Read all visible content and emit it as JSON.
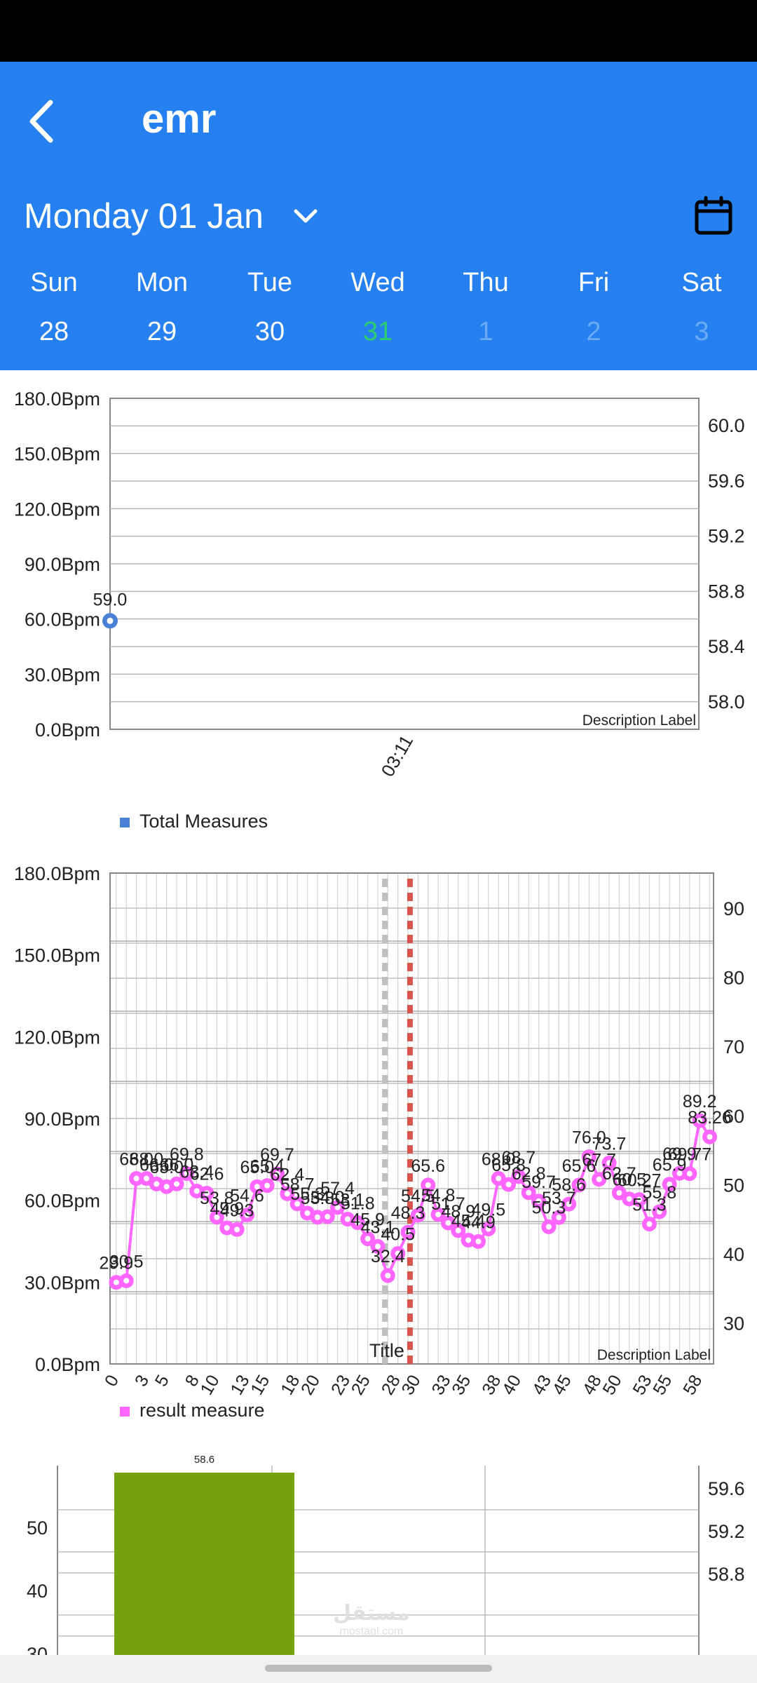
{
  "app": {
    "title": "emr"
  },
  "date_selector": {
    "label": "Monday 01 Jan"
  },
  "week": [
    {
      "name": "Sun",
      "num": "28",
      "state": "normal"
    },
    {
      "name": "Mon",
      "num": "29",
      "state": "normal"
    },
    {
      "name": "Tue",
      "num": "30",
      "state": "normal"
    },
    {
      "name": "Wed",
      "num": "31",
      "state": "today"
    },
    {
      "name": "Thu",
      "num": "1",
      "state": "muted"
    },
    {
      "name": "Fri",
      "num": "2",
      "state": "muted"
    },
    {
      "name": "Sat",
      "num": "3",
      "state": "muted"
    }
  ],
  "icons": {
    "back": "back-icon",
    "chevron": "chevron-down-icon",
    "calendar": "calendar-icon"
  },
  "colors": {
    "appbar": "#2680f0",
    "today": "#2ecc71",
    "series1": "#4a80d6",
    "series2": "#ff66ff",
    "bar": "#77a10a",
    "limit1": "#c0c0c0",
    "limit2": "#d9534f"
  },
  "watermark": {
    "main": "مستقل",
    "sub": "mostaql.com"
  },
  "chart_data": [
    {
      "type": "line",
      "ylabels_left": [
        "180.0Bpm",
        "150.0Bpm",
        "120.0Bpm",
        "90.0Bpm",
        "60.0Bpm",
        "30.0Bpm",
        "0.0Bpm"
      ],
      "ylabels_right": [
        "60.0",
        "59.6",
        "59.2",
        "58.8",
        "58.4",
        "58.0"
      ],
      "ylim": [
        0,
        180
      ],
      "categories": [
        "03:11"
      ],
      "series": [
        {
          "name": "Total Measures",
          "values": [
            59.0
          ],
          "labels": [
            "59.0"
          ]
        }
      ],
      "description": "Description Label",
      "legend": "bottom-left"
    },
    {
      "type": "line",
      "ylabels_left": [
        "180.0Bpm",
        "150.0Bpm",
        "120.0Bpm",
        "90.0Bpm",
        "60.0Bpm",
        "30.0Bpm",
        "0.0Bpm"
      ],
      "ylabels_right": [
        "90",
        "80",
        "70",
        "60",
        "50",
        "40",
        "30"
      ],
      "ylim": [
        0,
        180
      ],
      "xtick_labels": [
        "0",
        "3",
        "5",
        "8",
        "10",
        "13",
        "15",
        "18",
        "20",
        "23",
        "25",
        "28",
        "30",
        "33",
        "35",
        "38",
        "40",
        "43",
        "45",
        "48",
        "50",
        "53",
        "55",
        "58"
      ],
      "x": [
        0,
        1,
        2,
        3,
        4,
        5,
        6,
        7,
        8,
        9,
        10,
        11,
        12,
        13,
        14,
        15,
        16,
        17,
        18,
        19,
        20,
        21,
        22,
        23,
        24,
        25,
        26,
        27,
        28,
        29,
        30,
        31,
        32,
        33,
        34,
        35,
        36,
        37,
        38,
        39,
        40,
        41,
        42,
        43,
        44,
        45,
        46,
        47,
        48,
        49,
        50,
        51,
        52,
        53,
        54,
        55,
        56,
        57,
        58,
        59
      ],
      "series": [
        {
          "name": "result measure",
          "values": [
            29.9,
            30.5,
            68.0,
            68.0,
            66.0,
            65.0,
            66.0,
            69.8,
            63.4,
            62.6,
            53.8,
            49.9,
            49.3,
            54.6,
            65.0,
            65.4,
            69.7,
            62.4,
            58.7,
            55.3,
            53.8,
            54.0,
            57.4,
            53.1,
            51.8,
            45.9,
            43.1,
            32.4,
            40.5,
            48.3,
            54.5,
            65.6,
            54.8,
            51.7,
            48.9,
            45.4,
            44.9,
            49.5,
            68.0,
            65.8,
            68.7,
            62.8,
            59.7,
            50.3,
            53.7,
            58.6,
            65.6,
            76.0,
            67.7,
            73.7,
            62.7,
            60.5,
            60.27,
            51.3,
            55.8,
            65.9,
            69.9,
            69.77,
            89.2,
            83.26
          ],
          "labels": [
            "29.9",
            "30.5",
            "68.0",
            "68.0",
            "66.0",
            "65.0",
            "66.0",
            "69.8",
            "63.4",
            "62.6",
            "53.8",
            "49.9",
            "49.3",
            "54.6",
            "65.0",
            "65.4",
            "69.7",
            "62.4",
            "58.7",
            "55.3",
            "53.8",
            "54.0",
            "57.4",
            "53.1",
            "51.8",
            "45.9",
            "43.1",
            "32.4",
            "40.5",
            "48.3",
            "54.5",
            "65.6",
            "54.8",
            "51.7",
            "48.9",
            "45.4",
            "44.9",
            "49.5",
            "68.0",
            "65.8",
            "68.7",
            "62.8",
            "59.7",
            "50.3",
            "53.7",
            "58.6",
            "65.6",
            "76.0",
            "67.7",
            "73.7",
            "62.7",
            "60.5",
            "60.27",
            "51.3",
            "55.8",
            "65.9",
            "69.9",
            "69.77",
            "89.2",
            "83.26"
          ]
        }
      ],
      "limit_lines": [
        {
          "x": 26.7,
          "color": "#c0c0c0"
        },
        {
          "x": 29.2,
          "color": "#d9534f",
          "label": "Title"
        }
      ],
      "description": "Description Label",
      "legend": "bottom-left"
    },
    {
      "type": "bar",
      "ylabels_left": [
        "50",
        "40",
        "30"
      ],
      "ylabels_right": [
        "59.6",
        "59.2",
        "58.8"
      ],
      "series": [
        {
          "name": "",
          "values": [
            58.6
          ],
          "labels": [
            "58.6"
          ]
        }
      ]
    }
  ]
}
